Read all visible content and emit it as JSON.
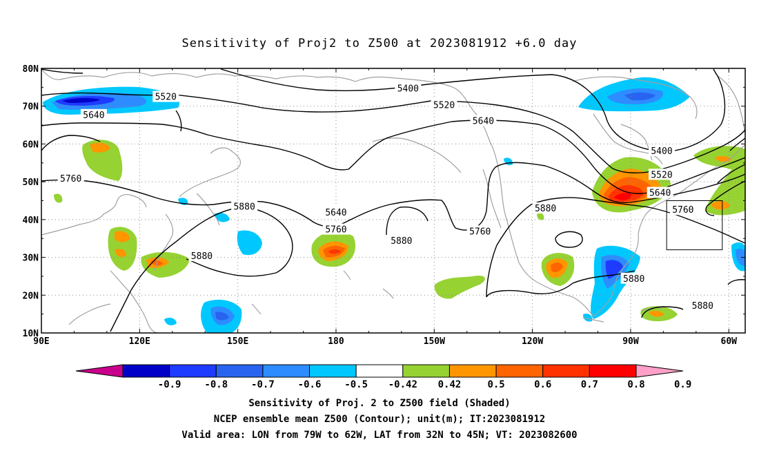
{
  "title": "Sensitivity of Proj2 to Z500 at 2023081912 +6.0 day",
  "map": {
    "lat_ticks": [
      "80N",
      "70N",
      "60N",
      "50N",
      "40N",
      "30N",
      "20N",
      "10N"
    ],
    "lon_ticks": [
      "90E",
      "120E",
      "150E",
      "180",
      "150W",
      "120W",
      "90W",
      "60W"
    ],
    "contour_labels": [
      {
        "text": "5400",
        "lon": -158,
        "lat": 74.6
      },
      {
        "text": "5400",
        "lon": -80.5,
        "lat": 58.1
      },
      {
        "text": "5520",
        "lon": 128,
        "lat": 72.4
      },
      {
        "text": "5520",
        "lon": -147,
        "lat": 70.2
      },
      {
        "text": "5520",
        "lon": -80.5,
        "lat": 51.8
      },
      {
        "text": "5640",
        "lon": 106,
        "lat": 67.6
      },
      {
        "text": "5640",
        "lon": -135,
        "lat": 66.0
      },
      {
        "text": "5640",
        "lon": -180,
        "lat": 41.8
      },
      {
        "text": "5640",
        "lon": -81,
        "lat": 47.0
      },
      {
        "text": "5760",
        "lon": 99,
        "lat": 50.8
      },
      {
        "text": "5760",
        "lon": -180,
        "lat": 37.3
      },
      {
        "text": "5760",
        "lon": -136,
        "lat": 36.8
      },
      {
        "text": "5760",
        "lon": -74,
        "lat": 42.5
      },
      {
        "text": "5880",
        "lon": 152,
        "lat": 43.4
      },
      {
        "text": "5880",
        "lon": -160,
        "lat": 34.3
      },
      {
        "text": "5880",
        "lon": 139,
        "lat": 30.3
      },
      {
        "text": "5880",
        "lon": -116,
        "lat": 42.9
      },
      {
        "text": "5880",
        "lon": -89,
        "lat": 24.3
      },
      {
        "text": "5880",
        "lon": -68,
        "lat": 17.1
      }
    ],
    "valid_box": {
      "lon_min": -79,
      "lon_max": -62,
      "lat_min": 32,
      "lat_max": 45
    }
  },
  "colorbar": {
    "labels": [
      "-0.9",
      "-0.8",
      "-0.7",
      "-0.6",
      "-0.5",
      "-0.42",
      "0.42",
      "0.5",
      "0.6",
      "0.7",
      "0.8",
      "0.9"
    ],
    "colors": [
      "#c8008c",
      "#0000c8",
      "#1e3cff",
      "#2864f0",
      "#2d8cff",
      "#00c8ff",
      "#ffffff",
      "#96d232",
      "#ff9600",
      "#ff6400",
      "#ff3200",
      "#ff0000",
      "#ffa0c8"
    ]
  },
  "captions": {
    "line1": "Sensitivity of Proj. 2 to Z500 field (Shaded)",
    "line2": "NCEP ensemble mean Z500 (Contour); unit(m); IT:2023081912",
    "line3": "Valid area: LON from 79W to 62W, LAT from 32N to 45N; VT: 2023082600"
  }
}
